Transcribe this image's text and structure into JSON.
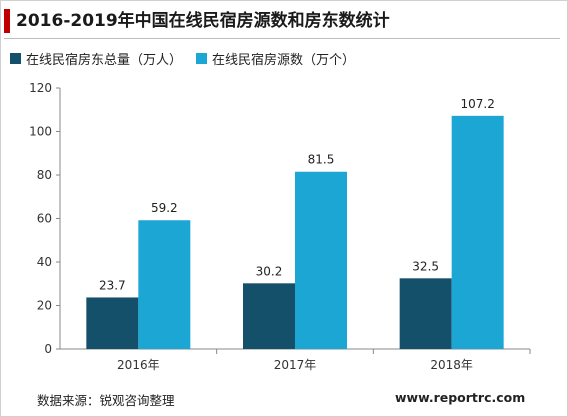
{
  "title": "2016-2019年中国在线民宿房源数和房东数统计",
  "colors": {
    "accent": "#c00000",
    "series1": "#15506a",
    "series2": "#1ba6d4"
  },
  "chart_data": {
    "type": "bar",
    "title": "2016-2019年中国在线民宿房源数和房东数统计",
    "xlabel": "",
    "ylabel": "",
    "categories": [
      "2016年",
      "2017年",
      "2018年"
    ],
    "series": [
      {
        "name": "在线民宿房东总量（万人）",
        "values": [
          23.7,
          30.2,
          32.5
        ],
        "color": "#15506a"
      },
      {
        "name": "在线民宿房源数（万个）",
        "values": [
          59.2,
          81.5,
          107.2
        ],
        "color": "#1ba6d4"
      }
    ],
    "ylim": [
      0,
      120
    ],
    "yticks": [
      0,
      20,
      40,
      60,
      80,
      100,
      120
    ],
    "grid": false,
    "legend": "top-left",
    "data_labels": true
  },
  "footer": {
    "source": "数据来源：锐观咨询整理",
    "website": "www.reportrc.com"
  }
}
